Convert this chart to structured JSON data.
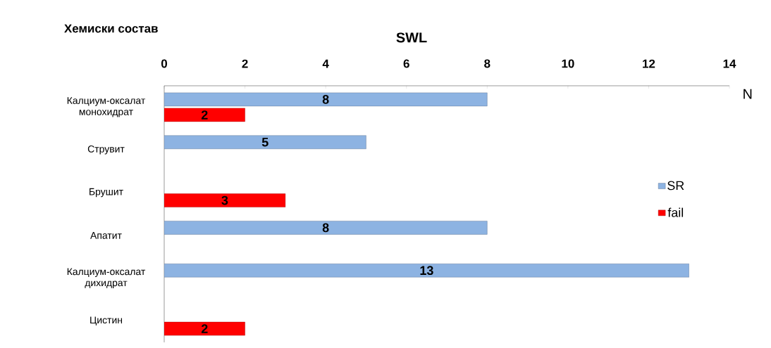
{
  "chart_data": {
    "type": "bar",
    "orientation": "horizontal",
    "title": "SWL",
    "xlabel": "N",
    "ylabel": "Хемиски состав",
    "categories": [
      "Калциум-оксалат монохидрат",
      "Струвит",
      "Брушит",
      "Апатит",
      "Калциум-оксалат дихидрат",
      "Цистин"
    ],
    "series": [
      {
        "name": "SR",
        "color": "#8db3e2",
        "values": [
          8,
          5,
          null,
          8,
          13,
          null
        ]
      },
      {
        "name": "fail",
        "color": "#ff0000",
        "values": [
          2,
          null,
          3,
          null,
          null,
          2
        ]
      }
    ],
    "xlim": [
      0,
      14
    ],
    "xticks": [
      0,
      2,
      4,
      6,
      8,
      10,
      12,
      14
    ],
    "data_labels": true,
    "legend": "right",
    "grid": false
  }
}
